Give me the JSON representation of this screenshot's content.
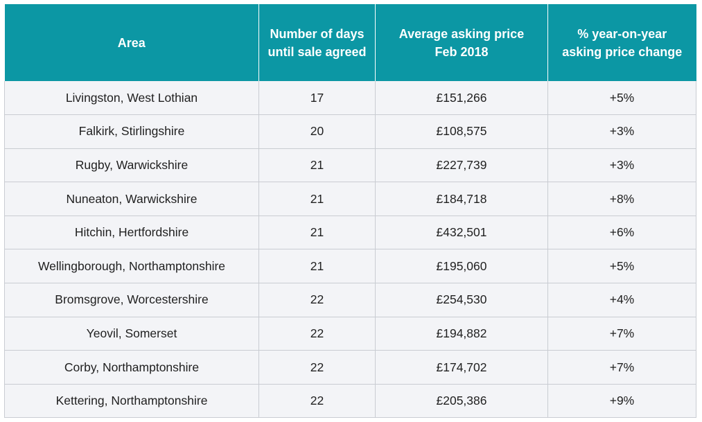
{
  "chart_data": {
    "type": "table",
    "columns": [
      {
        "lines": [
          "Area"
        ]
      },
      {
        "lines": [
          "Number of days",
          "until sale agreed"
        ]
      },
      {
        "lines": [
          "Average asking price",
          "Feb 2018"
        ]
      },
      {
        "lines": [
          "% year-on-year",
          "asking price change"
        ]
      }
    ],
    "rows": [
      [
        "Livingston, West Lothian",
        "17",
        "£151,266",
        "+5%"
      ],
      [
        "Falkirk, Stirlingshire",
        "20",
        "£108,575",
        "+3%"
      ],
      [
        "Rugby, Warwickshire",
        "21",
        "£227,739",
        "+3%"
      ],
      [
        "Nuneaton, Warwickshire",
        "21",
        "£184,718",
        "+8%"
      ],
      [
        "Hitchin, Hertfordshire",
        "21",
        "£432,501",
        "+6%"
      ],
      [
        "Wellingborough, Northamptonshire",
        "21",
        "£195,060",
        "+5%"
      ],
      [
        "Bromsgrove, Worcestershire",
        "22",
        "£254,530",
        "+4%"
      ],
      [
        "Yeovil, Somerset",
        "22",
        "£194,882",
        "+7%"
      ],
      [
        "Corby, Northamptonshire",
        "22",
        "£174,702",
        "+7%"
      ],
      [
        "Kettering, Northamptonshire",
        "22",
        "£205,386",
        "+9%"
      ]
    ],
    "colors": {
      "header_background": "#0c97a4",
      "header_text": "#ffffff",
      "row_background": "#f3f4f7",
      "grid_lines": "#c9ccd2"
    }
  }
}
